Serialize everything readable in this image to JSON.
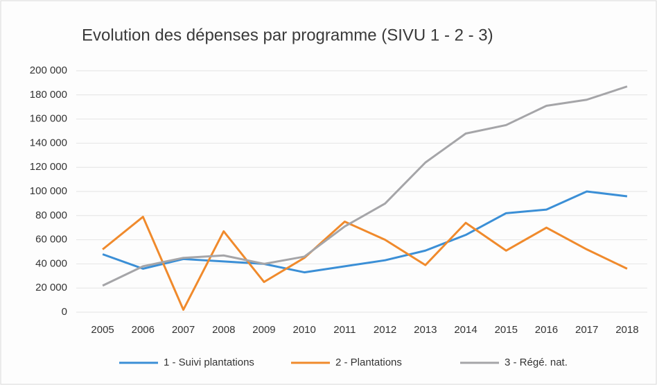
{
  "chart_data": {
    "type": "line",
    "title": "Evolution des dépenses par programme (SIVU 1 - 2 - 3)",
    "categories": [
      "2005",
      "2006",
      "2007",
      "2008",
      "2009",
      "2010",
      "2011",
      "2012",
      "2013",
      "2014",
      "2015",
      "2016",
      "2017",
      "2018"
    ],
    "series": [
      {
        "name": "1 - Suivi plantations",
        "color": "#3b8fd6",
        "values": [
          48000,
          36000,
          44000,
          42000,
          40000,
          33000,
          38000,
          43000,
          51000,
          64000,
          82000,
          85000,
          100000,
          96000
        ]
      },
      {
        "name": "2 - Plantations",
        "color": "#f08a2c",
        "values": [
          52000,
          79000,
          2000,
          67000,
          25000,
          45000,
          75000,
          60000,
          39000,
          74000,
          51000,
          70000,
          52000,
          36000
        ]
      },
      {
        "name": "3 - Régé. nat.",
        "color": "#a5a5a8",
        "values": [
          22000,
          38000,
          45000,
          47000,
          40000,
          46000,
          71000,
          90000,
          124000,
          148000,
          155000,
          171000,
          176000,
          187000
        ]
      }
    ],
    "ylim": [
      0,
      200000
    ],
    "yticks": [
      0,
      {
        "value": 20000,
        "label": "20 000"
      },
      {
        "value": 40000,
        "label": "40 000"
      },
      {
        "value": 60000,
        "label": "60 000"
      },
      {
        "value": 80000,
        "label": "80 000"
      },
      {
        "value": 100000,
        "label": "100 000"
      },
      {
        "value": 120000,
        "label": "120 000"
      },
      {
        "value": 140000,
        "label": "140 000"
      },
      {
        "value": 160000,
        "label": "160 000"
      },
      {
        "value": 180000,
        "label": "180 000"
      },
      {
        "value": 200000,
        "label": "200 000"
      }
    ],
    "grid": true,
    "legend": "bottom"
  }
}
